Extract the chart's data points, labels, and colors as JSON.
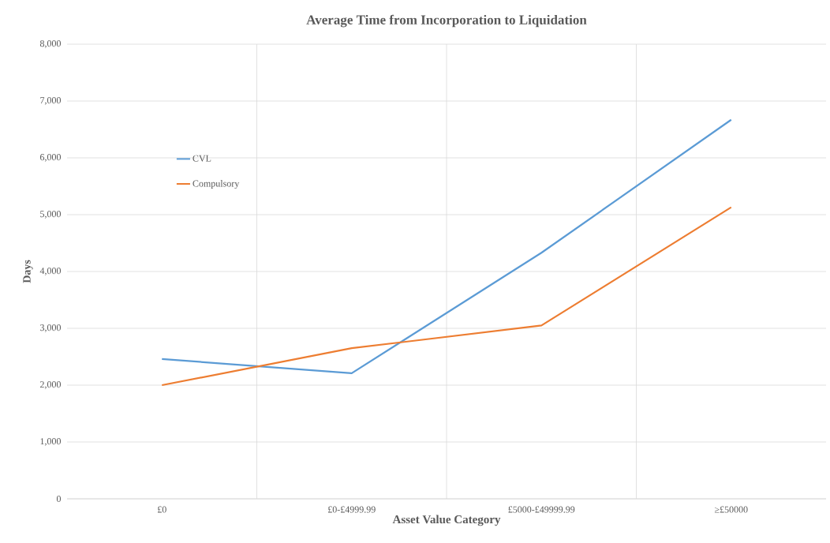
{
  "chart_data": {
    "type": "line",
    "title": "Average Time from Incorporation to Liquidation",
    "xlabel": "Asset Value Category",
    "ylabel": "Days",
    "categories": [
      "£0",
      "£0-£4999.99",
      "£5000-£49999.99",
      "≥£50000"
    ],
    "series": [
      {
        "name": "CVL",
        "color": "#5b9bd5",
        "values": [
          2460,
          2210,
          4330,
          6670
        ]
      },
      {
        "name": "Compulsory",
        "color": "#ed7d31",
        "values": [
          2000,
          2650,
          3050,
          5130
        ]
      }
    ],
    "ylim": [
      0,
      8000
    ],
    "yticks": [
      0,
      {
        "value": 1000,
        "label": "1,000"
      },
      {
        "value": 2000,
        "label": "2,000"
      },
      {
        "value": 3000,
        "label": "3,000"
      },
      {
        "value": 4000,
        "label": "4,000"
      },
      {
        "value": 5000,
        "label": "5,000"
      },
      {
        "value": 6000,
        "label": "6,000"
      },
      {
        "value": 7000,
        "label": "7,000"
      },
      {
        "value": 8000,
        "label": "8,000"
      }
    ],
    "grid": true,
    "legend": "left",
    "marker": "none",
    "line_style": "solid"
  }
}
